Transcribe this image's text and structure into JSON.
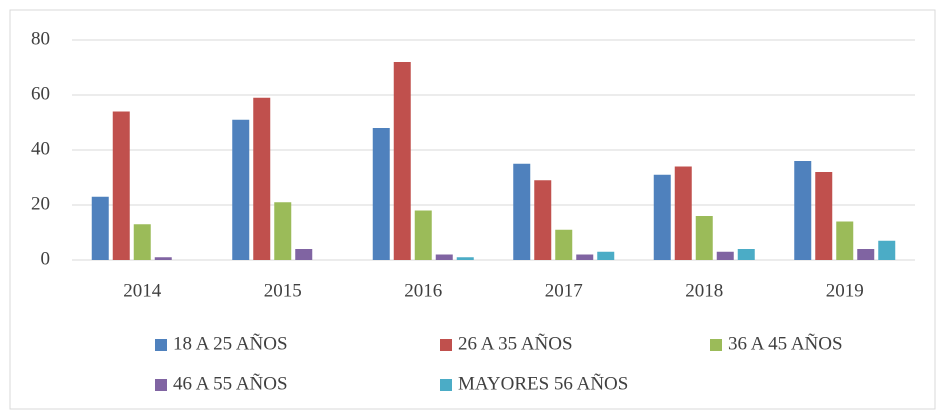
{
  "chart_data": {
    "type": "bar",
    "categories": [
      "2014",
      "2015",
      "2016",
      "2017",
      "2018",
      "2019"
    ],
    "series": [
      {
        "name": "18 A 25 AÑOS",
        "color": "#4f81bd",
        "values": [
          23,
          51,
          48,
          35,
          31,
          36
        ]
      },
      {
        "name": "26 A 35 AÑOS",
        "color": "#c0504d",
        "values": [
          54,
          59,
          72,
          29,
          34,
          32
        ]
      },
      {
        "name": "36 A 45 AÑOS",
        "color": "#9bbb59",
        "values": [
          13,
          21,
          18,
          11,
          16,
          14
        ]
      },
      {
        "name": "46 A 55 AÑOS",
        "color": "#8064a2",
        "values": [
          1,
          4,
          2,
          2,
          3,
          4
        ]
      },
      {
        "name": "MAYORES 56 AÑOS",
        "color": "#4bacc6",
        "values": [
          0,
          0,
          1,
          3,
          4,
          7
        ]
      }
    ],
    "ylim": [
      0,
      80
    ],
    "yticks": [
      0,
      20,
      40,
      60,
      80
    ],
    "grid": true,
    "legend": "bottom"
  }
}
